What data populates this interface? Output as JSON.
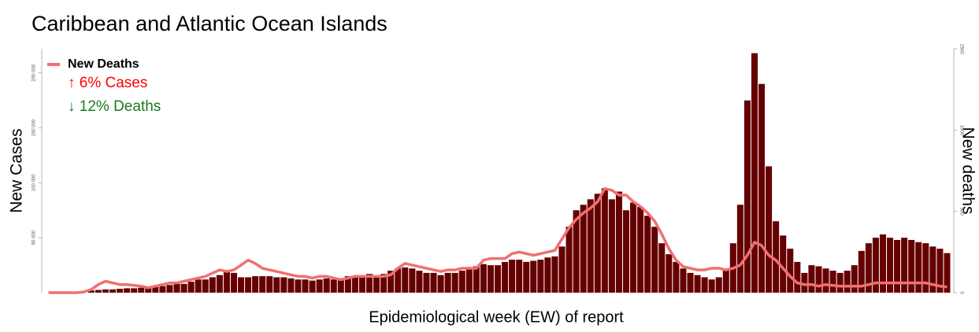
{
  "chart_data": {
    "type": "bar_line",
    "title": "Caribbean and Atlantic Ocean Islands",
    "xlabel": "Epidemiological week (EW) of report",
    "ylabel": "New Cases",
    "y2label": "New deaths",
    "ylim": [
      0,
      222000
    ],
    "yticks": [
      {
        "value": 50000,
        "label": "50 000"
      },
      {
        "value": 100000,
        "label": "100 000"
      },
      {
        "value": 150000,
        "label": "150 000"
      },
      {
        "value": 200000,
        "label": "200 000"
      }
    ],
    "y2lim": [
      0,
      1500
    ],
    "y2ticks": [
      0,
      500,
      1000,
      1500
    ],
    "legend": "top-left",
    "annotations": [
      {
        "text": "↑ 6% Cases",
        "color": "#ff0000"
      },
      {
        "text": "↓ 12% Deaths",
        "color": "#1a7a1a"
      }
    ],
    "series": [
      {
        "type": "bar",
        "color": "#660000",
        "values": [
          0,
          0,
          0,
          0,
          0,
          0,
          2000,
          2500,
          3000,
          3000,
          3500,
          4000,
          4000,
          4500,
          5000,
          5000,
          6000,
          7000,
          8000,
          8000,
          10000,
          12000,
          12000,
          14000,
          16000,
          20000,
          18000,
          14000,
          14000,
          15000,
          15000,
          15000,
          14000,
          14000,
          13000,
          12000,
          12000,
          11000,
          12000,
          13000,
          12000,
          13000,
          15000,
          14000,
          16000,
          17000,
          16000,
          17000,
          20000,
          22000,
          23000,
          22000,
          20000,
          18000,
          18000,
          16000,
          18000,
          18000,
          20000,
          22000,
          24000,
          26000,
          25000,
          25000,
          28000,
          30000,
          30000,
          28000,
          29000,
          30000,
          32000,
          33000,
          42000,
          60000,
          75000,
          80000,
          85000,
          90000,
          95000,
          85000,
          92000,
          75000,
          82000,
          78000,
          70000,
          60000,
          45000,
          35000,
          28000,
          22000,
          18000,
          16000,
          14000,
          12000,
          14000,
          20000,
          45000,
          80000,
          175000,
          218000,
          190000,
          115000,
          65000,
          52000,
          40000,
          28000,
          18000,
          25000,
          24000,
          22000,
          20000,
          18000,
          20000,
          25000,
          38000,
          45000,
          50000,
          53000,
          50000,
          48000,
          50000,
          48000,
          46000,
          45000,
          42000,
          40000,
          36000
        ]
      },
      {
        "type": "line",
        "name": "New Deaths",
        "axis": "y2",
        "color": "#f07070",
        "values": [
          0,
          0,
          0,
          0,
          0,
          5,
          20,
          50,
          70,
          60,
          50,
          50,
          45,
          40,
          30,
          40,
          50,
          60,
          60,
          70,
          80,
          90,
          100,
          120,
          140,
          130,
          140,
          170,
          200,
          180,
          150,
          140,
          130,
          120,
          110,
          100,
          100,
          90,
          100,
          100,
          90,
          80,
          90,
          100,
          100,
          100,
          100,
          100,
          110,
          150,
          180,
          170,
          160,
          150,
          140,
          130,
          140,
          140,
          150,
          150,
          150,
          200,
          210,
          210,
          210,
          240,
          250,
          240,
          230,
          240,
          250,
          260,
          330,
          400,
          450,
          490,
          520,
          560,
          640,
          630,
          600,
          600,
          560,
          530,
          490,
          440,
          360,
          270,
          200,
          160,
          150,
          140,
          140,
          150,
          150,
          140,
          150,
          170,
          230,
          310,
          290,
          230,
          200,
          150,
          100,
          60,
          50,
          50,
          40,
          50,
          45,
          40,
          40,
          40,
          40,
          50,
          60,
          60,
          60,
          60,
          60,
          60,
          60,
          60,
          50,
          40,
          35
        ]
      }
    ]
  }
}
